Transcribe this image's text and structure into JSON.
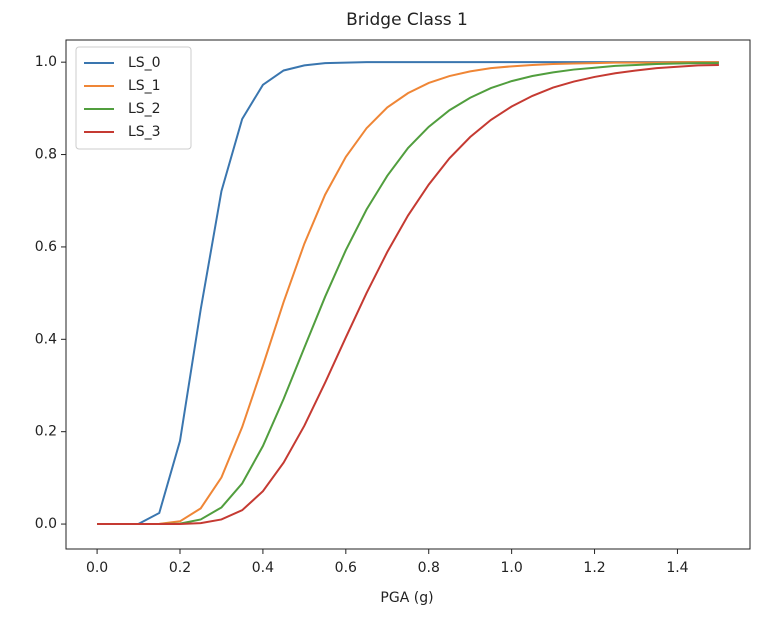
{
  "chart_data": {
    "type": "line",
    "title": "Bridge Class 1",
    "x_label": "PGA (g)",
    "x": [
      0,
      0.05,
      0.1,
      0.15,
      0.2,
      0.25,
      0.3,
      0.35,
      0.4,
      0.45,
      0.5,
      0.55,
      0.6,
      0.65,
      0.7,
      0.75,
      0.8,
      0.85,
      0.9,
      0.95,
      1.0,
      1.05,
      1.1,
      1.15,
      1.2,
      1.25,
      1.3,
      1.35,
      1.4,
      1.45,
      1.5
    ],
    "series": [
      {
        "name": "LS_0",
        "color": "#3a76af",
        "values": [
          0,
          0,
          0.0003,
          0.024,
          0.18,
          0.465,
          0.721,
          0.877,
          0.951,
          0.982,
          0.993,
          0.998,
          0.999,
          1,
          1,
          1,
          1,
          1,
          1,
          1,
          1,
          1,
          1,
          1,
          1,
          1,
          1,
          1,
          1,
          1,
          1
        ]
      },
      {
        "name": "LS_1",
        "color": "#ef8636",
        "values": [
          0,
          0,
          0,
          0.0004,
          0.006,
          0.034,
          0.101,
          0.21,
          0.343,
          0.481,
          0.607,
          0.713,
          0.795,
          0.857,
          0.902,
          0.933,
          0.955,
          0.97,
          0.98,
          0.987,
          0.991,
          0.994,
          0.996,
          0.997,
          0.998,
          0.999,
          0.999,
          0.999,
          1,
          1,
          1
        ]
      },
      {
        "name": "LS_2",
        "color": "#519e3e",
        "values": [
          0,
          0,
          0,
          0.0001,
          0.001,
          0.01,
          0.036,
          0.088,
          0.169,
          0.271,
          0.382,
          0.492,
          0.593,
          0.681,
          0.754,
          0.814,
          0.86,
          0.896,
          0.923,
          0.944,
          0.959,
          0.97,
          0.978,
          0.984,
          0.988,
          0.992,
          0.994,
          0.996,
          0.997,
          0.998,
          0.998
        ]
      },
      {
        "name": "LS_3",
        "color": "#c53a32",
        "values": [
          0,
          0,
          0,
          0,
          0.0002,
          0.002,
          0.01,
          0.03,
          0.071,
          0.133,
          0.213,
          0.306,
          0.404,
          0.5,
          0.589,
          0.668,
          0.735,
          0.792,
          0.838,
          0.875,
          0.904,
          0.927,
          0.945,
          0.958,
          0.968,
          0.976,
          0.982,
          0.987,
          0.99,
          0.993,
          0.994
        ]
      }
    ],
    "xlim": [
      -0.075,
      1.575
    ],
    "ylim": [
      -0.054,
      1.048
    ],
    "xticks": [
      {
        "value": 0,
        "label": "0.0"
      },
      0.2,
      0.4,
      0.6,
      0.8,
      {
        "value": 1,
        "label": "1.0"
      },
      1.2,
      1.4
    ],
    "yticks": [
      {
        "value": 0,
        "label": "0.0"
      },
      0.2,
      0.4,
      0.6,
      0.8,
      {
        "value": 1,
        "label": "1.0"
      }
    ],
    "legend": "upper left",
    "grid": false
  }
}
